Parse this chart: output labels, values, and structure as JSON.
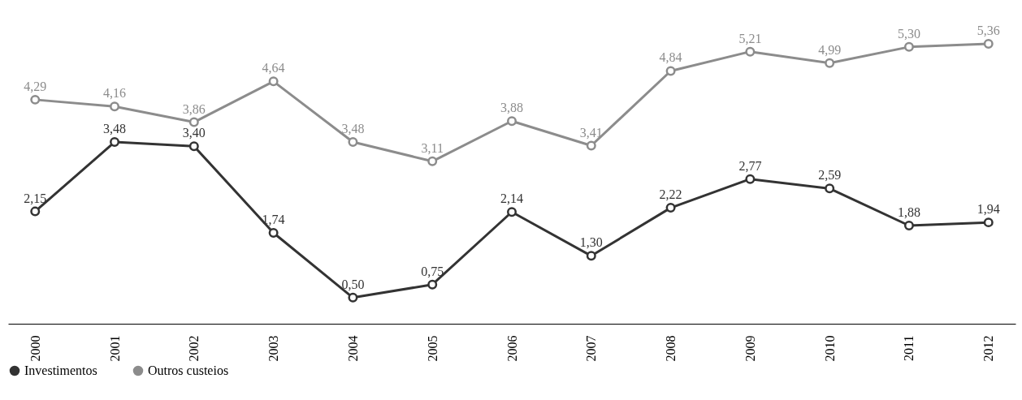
{
  "chart_data": {
    "type": "line",
    "categories": [
      "2000",
      "2001",
      "2002",
      "2003",
      "2004",
      "2005",
      "2006",
      "2007",
      "2008",
      "2009",
      "2010",
      "2011",
      "2012"
    ],
    "series": [
      {
        "name": "Investimentos",
        "color": "#333333",
        "values": [
          2.15,
          3.48,
          3.4,
          1.74,
          0.5,
          0.75,
          2.14,
          1.3,
          2.22,
          2.77,
          2.59,
          1.88,
          1.94
        ],
        "value_labels": [
          "2,15",
          "3,48",
          "3,40",
          "1,74",
          "0,50",
          "0,75",
          "2,14",
          "1,30",
          "2,22",
          "2,77",
          "2,59",
          "1,88",
          "1,94"
        ]
      },
      {
        "name": "Outros custeios",
        "color": "#8c8c8c",
        "values": [
          4.29,
          4.16,
          3.86,
          4.64,
          3.48,
          3.11,
          3.88,
          3.41,
          4.84,
          5.21,
          4.99,
          5.3,
          5.36
        ],
        "value_labels": [
          "4,29",
          "4,16",
          "3,86",
          "4,64",
          "3,48",
          "3,11",
          "3,88",
          "3,41",
          "4,84",
          "5,21",
          "4,99",
          "5,30",
          "5,36"
        ]
      }
    ],
    "tick_labels": "x",
    "grid": false,
    "legend": "bottom",
    "marker": "circle",
    "line_style": "solid"
  }
}
